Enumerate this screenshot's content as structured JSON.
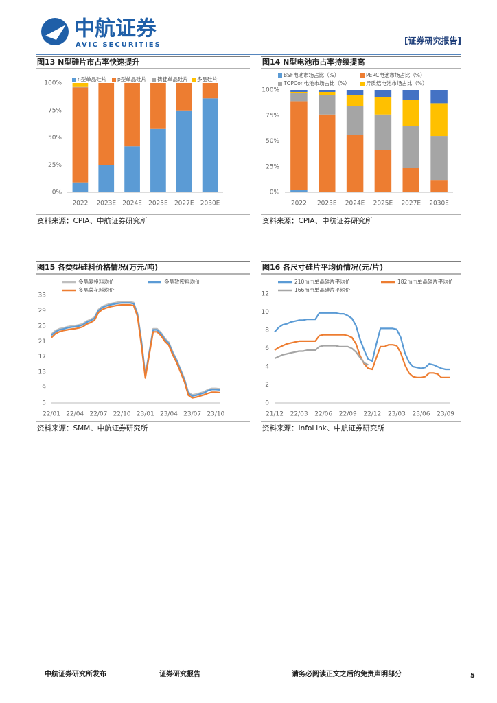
{
  "header": {
    "brand": "中航证券",
    "brand_en": "AVIC SECURITIES",
    "report_type": "[证券研究报告]"
  },
  "chart_data": [
    {
      "type": "bar",
      "stacked": true,
      "title": "图13 N型硅片市占率快速提升",
      "source": "资料来源：CPIA、中航证券研究所",
      "categories": [
        "2022",
        "2023E",
        "2024E",
        "2025E",
        "2027E",
        "2030E"
      ],
      "series": [
        {
          "name": "n型单晶硅片",
          "color": "#5b9bd5",
          "values": [
            9,
            25,
            42,
            58,
            75,
            86
          ]
        },
        {
          "name": "p型单晶硅片",
          "color": "#ed7d31",
          "values": [
            87,
            75,
            58,
            42,
            25,
            14
          ]
        },
        {
          "name": "铸锭单晶硅片",
          "color": "#a5a5a5",
          "values": [
            1,
            0,
            0,
            0,
            0,
            0
          ]
        },
        {
          "name": "多晶硅片",
          "color": "#ffc000",
          "values": [
            3,
            0,
            0,
            0,
            0,
            0
          ]
        }
      ],
      "ylim": [
        0,
        100
      ],
      "yticks": [
        {
          "value": 0,
          "label": "0%"
        },
        {
          "value": 25,
          "label": "25%"
        },
        {
          "value": 50,
          "label": "50%"
        },
        {
          "value": 75,
          "label": "75%"
        },
        {
          "value": 100,
          "label": "100%"
        }
      ],
      "grid": false
    },
    {
      "type": "bar",
      "stacked": true,
      "title": "图14 N型电池市占率持续提高",
      "source": "资料来源：CPIA、中航证券研究所",
      "categories": [
        "2022",
        "2023E",
        "2024E",
        "2025E",
        "2027E",
        "2030E"
      ],
      "series": [
        {
          "name": "BSF电池市场占比（%）",
          "color": "#5b9bd5",
          "values": [
            2,
            0,
            0,
            0,
            0,
            0
          ]
        },
        {
          "name": "PERC电池市场占比（%）",
          "color": "#ed7d31",
          "values": [
            87,
            76,
            56,
            41,
            24,
            12
          ]
        },
        {
          "name": "TOPCon电池市场占比（%）",
          "color": "#a5a5a5",
          "values": [
            8,
            19,
            28,
            35,
            41,
            43
          ]
        },
        {
          "name": "异质结电池市场占比（%）",
          "color": "#ffc000",
          "values": [
            1,
            3,
            11,
            17,
            25,
            32
          ]
        },
        {
          "color": "#4472c4",
          "values": [
            2,
            2,
            5,
            7,
            10,
            13
          ]
        }
      ],
      "ylim": [
        0,
        100
      ],
      "yticks": [
        {
          "value": 0,
          "label": "0%"
        },
        {
          "value": 25,
          "label": "25%"
        },
        {
          "value": 50,
          "label": "50%"
        },
        {
          "value": 75,
          "label": "75%"
        },
        {
          "value": 100,
          "label": "100%"
        }
      ],
      "grid": false
    },
    {
      "type": "line",
      "title": "图15 各类型硅料价格情况(万元/吨)",
      "source": "资料来源：SMM、中航证券研究所",
      "categories": [
        "22/01",
        null,
        null,
        null,
        null,
        null,
        "22/04",
        null,
        null,
        null,
        null,
        null,
        "22/07",
        null,
        null,
        null,
        null,
        null,
        "22/10",
        null,
        null,
        null,
        null,
        null,
        "23/01",
        null,
        null,
        null,
        null,
        null,
        "23/04",
        null,
        null,
        null,
        null,
        null,
        "23/07",
        null,
        null,
        null,
        null,
        null,
        "23/10",
        null
      ],
      "series": [
        {
          "name": "多晶复投料均价",
          "color": "#bfbfbf",
          "values": [
            22.9,
            23.8,
            24.3,
            24.5,
            24.8,
            25,
            25.1,
            25.3,
            25.6,
            26.3,
            26.7,
            27.3,
            29.3,
            30.1,
            30.5,
            30.8,
            31,
            31.2,
            31.3,
            31.3,
            31.3,
            31.1,
            28.3,
            21.3,
            12.3,
            18.3,
            24.3,
            24.3,
            23.3,
            21.8,
            20.8,
            18.3,
            16.3,
            13.8,
            11.3,
            7.8,
            7.1,
            7.3,
            7.6,
            7.9,
            8.5,
            8.8,
            8.8,
            8.7
          ]
        },
        {
          "name": "多晶致密料均价",
          "color": "#5b9bd5",
          "values": [
            22.6,
            23.5,
            24,
            24.2,
            24.5,
            24.7,
            24.8,
            25,
            25.3,
            26,
            26.4,
            27,
            29,
            29.8,
            30.2,
            30.5,
            30.7,
            30.9,
            31,
            31,
            31,
            30.8,
            28,
            21,
            12,
            18,
            24,
            24,
            23,
            21.5,
            20.5,
            18,
            16,
            13.5,
            11,
            7.5,
            6.8,
            7,
            7.3,
            7.6,
            8.2,
            8.5,
            8.5,
            8.4
          ]
        },
        {
          "name": "多晶菜花料均价",
          "color": "#ed7d31",
          "values": [
            22,
            23,
            23.5,
            23.8,
            24,
            24.2,
            24.3,
            24.5,
            24.8,
            25.5,
            25.9,
            26.5,
            28.5,
            29.3,
            29.7,
            30,
            30.2,
            30.4,
            30.5,
            30.5,
            30.5,
            30.3,
            27.5,
            20,
            11.5,
            17.5,
            23.5,
            23.5,
            22.5,
            21,
            20,
            17.5,
            15.5,
            13,
            10.5,
            7,
            6.3,
            6.5,
            6.8,
            7.1,
            7.5,
            7.8,
            7.8,
            7.7
          ]
        }
      ],
      "ylim": [
        5,
        33
      ],
      "yticks": [
        5,
        9,
        13,
        17,
        21,
        25,
        29,
        33
      ],
      "grid": false
    },
    {
      "type": "line",
      "title": "图16 各尺寸硅片平均价情况(元/片)",
      "source": "资料来源：InfoLink、中航证券研究所",
      "categories": [
        "21/12",
        null,
        null,
        null,
        null,
        null,
        "22/03",
        null,
        null,
        null,
        null,
        null,
        "22/06",
        null,
        null,
        null,
        null,
        null,
        "22/09",
        null,
        null,
        null,
        null,
        null,
        "22/12",
        null,
        null,
        null,
        null,
        null,
        "23/03",
        null,
        null,
        null,
        null,
        null,
        "23/06",
        null,
        null,
        null,
        null,
        null,
        "23/09",
        null
      ],
      "series": [
        {
          "name": "210mm单晶硅片平均价",
          "color": "#5b9bd5",
          "values": [
            7.8,
            8.3,
            8.6,
            8.7,
            8.9,
            9.0,
            9.1,
            9.1,
            9.2,
            9.2,
            9.2,
            9.9,
            9.9,
            9.9,
            9.9,
            9.9,
            9.8,
            9.8,
            9.6,
            9.3,
            8.5,
            7.0,
            5.8,
            4.8,
            4.6,
            6.5,
            8.2,
            8.2,
            8.2,
            8.2,
            8.1,
            7.2,
            5.5,
            4.5,
            4.0,
            3.9,
            3.8,
            3.9,
            4.3,
            4.2,
            4.0,
            3.8,
            3.7,
            3.7
          ]
        },
        {
          "name": "182mm单晶硅片平均价",
          "color": "#ed7d31",
          "values": [
            5.8,
            6.1,
            6.3,
            6.5,
            6.6,
            6.7,
            6.8,
            6.8,
            6.8,
            6.8,
            6.8,
            7.4,
            7.5,
            7.5,
            7.5,
            7.5,
            7.5,
            7.5,
            7.4,
            7.2,
            6.5,
            5.2,
            4.3,
            3.8,
            3.7,
            5.0,
            6.2,
            6.2,
            6.4,
            6.4,
            6.3,
            5.5,
            4.2,
            3.3,
            2.9,
            2.8,
            2.8,
            2.9,
            3.3,
            3.3,
            3.2,
            2.8,
            2.8,
            2.8
          ]
        },
        {
          "name": "166mm单晶硅片平均价",
          "color": "#a5a5a5",
          "values": [
            4.9,
            5.1,
            5.3,
            5.4,
            5.5,
            5.6,
            5.7,
            5.7,
            5.8,
            5.8,
            5.8,
            6.2,
            6.3,
            6.3,
            6.3,
            6.3,
            6.2,
            6.2,
            6.2,
            6.0,
            5.6,
            5.0,
            4.4,
            4.2,
            null,
            null,
            null,
            null,
            null,
            null,
            null,
            null,
            null,
            null,
            null,
            null,
            null,
            null,
            null,
            null,
            null,
            null,
            null,
            null
          ]
        }
      ],
      "ylim": [
        0,
        12
      ],
      "yticks": [
        0,
        2,
        4,
        6,
        8,
        10,
        12
      ],
      "grid": false
    }
  ],
  "footer": {
    "publisher": "中航证券研究所发布",
    "doc_type": "证券研究报告",
    "disclaimer": "请务必阅读正文之后的免责声明部分",
    "page": "5"
  }
}
